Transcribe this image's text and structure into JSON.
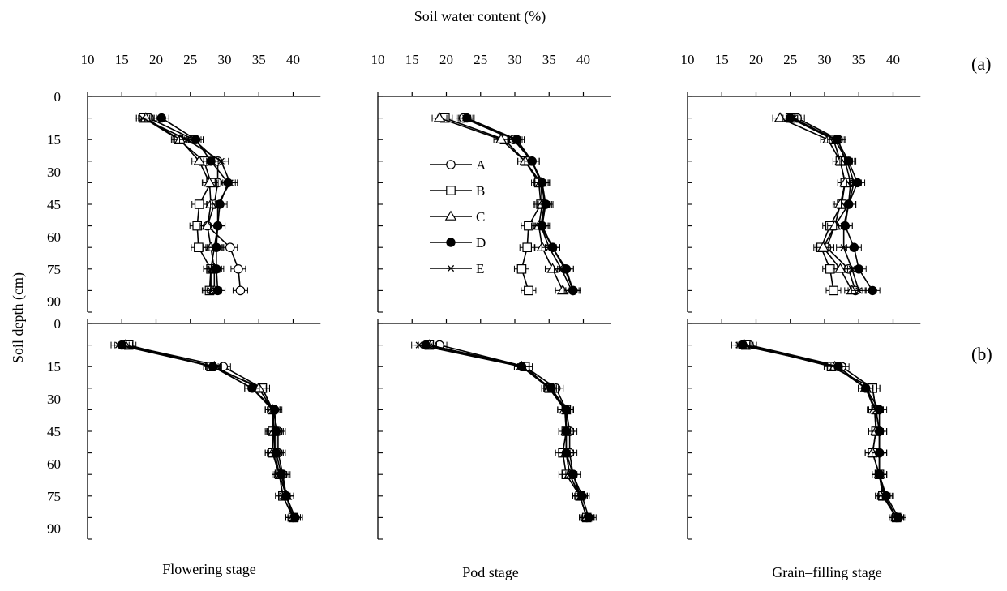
{
  "figure": {
    "x_axis_title": "Soil water content (%)",
    "y_axis_title": "Soil depth (cm)",
    "row_labels": [
      "(a)",
      "(b)"
    ],
    "column_titles": [
      "Flowering stage",
      "Pod stage",
      "Grain–filling stage"
    ],
    "x_tick_labels": [
      "10",
      "15",
      "20",
      "25",
      "30",
      "35",
      "40"
    ],
    "y_tick_labels": [
      "0",
      "15",
      "30",
      "45",
      "60",
      "75",
      "90"
    ],
    "legend": [
      "A",
      "B",
      "C",
      "D",
      "E"
    ],
    "marker_styles": {
      "A": "open-circle",
      "B": "open-square",
      "C": "open-triangle",
      "D": "filled-circle",
      "E": "asterisk"
    },
    "line_color": "#000000"
  },
  "chart_data": [
    {
      "type": "line",
      "row": "a",
      "stage": "Flowering stage",
      "xlim": [
        10,
        44
      ],
      "ylim": [
        0,
        100
      ],
      "y": [
        10,
        20,
        30,
        40,
        50,
        60,
        70,
        80,
        90
      ],
      "series": [
        {
          "name": "A",
          "x": [
            19.0,
            25.5,
            29.0,
            29.0,
            28.5,
            27.5,
            30.8,
            32.0,
            32.3
          ]
        },
        {
          "name": "B",
          "x": [
            18.2,
            23.3,
            27.0,
            28.0,
            26.3,
            26.0,
            26.2,
            28.0,
            27.8
          ]
        },
        {
          "name": "C",
          "x": [
            18.5,
            23.5,
            26.3,
            27.8,
            28.0,
            27.5,
            28.0,
            28.5,
            28.5
          ]
        },
        {
          "name": "D",
          "x": [
            20.8,
            25.8,
            28.0,
            30.5,
            29.3,
            29.0,
            28.8,
            28.8,
            29.0
          ]
        },
        {
          "name": "E",
          "x": [
            18.0,
            24.5,
            29.5,
            30.8,
            29.0,
            29.0,
            28.5,
            28.0,
            28.0
          ]
        }
      ]
    },
    {
      "type": "line",
      "row": "a",
      "stage": "Pod stage",
      "xlim": [
        10,
        44
      ],
      "ylim": [
        0,
        100
      ],
      "y": [
        10,
        20,
        30,
        40,
        50,
        60,
        70,
        80,
        90
      ],
      "series": [
        {
          "name": "A",
          "x": [
            22.5,
            29.8,
            32.5,
            33.8,
            34.5,
            33.8,
            35.5,
            37.3,
            38.5
          ]
        },
        {
          "name": "B",
          "x": [
            19.8,
            28.5,
            31.5,
            33.5,
            33.8,
            32.0,
            31.8,
            31.0,
            32.0
          ]
        },
        {
          "name": "C",
          "x": [
            19.0,
            28.0,
            31.5,
            33.8,
            34.0,
            33.5,
            34.0,
            35.5,
            37.0
          ]
        },
        {
          "name": "D",
          "x": [
            23.0,
            30.3,
            32.5,
            34.0,
            34.5,
            34.0,
            35.5,
            37.5,
            38.5
          ]
        },
        {
          "name": "E",
          "x": [
            22.8,
            30.0,
            32.5,
            34.0,
            34.3,
            33.8,
            35.0,
            36.8,
            38.3
          ]
        }
      ]
    },
    {
      "type": "line",
      "row": "a",
      "stage": "Grain–filling stage",
      "xlim": [
        10,
        44
      ],
      "ylim": [
        0,
        100
      ],
      "y": [
        10,
        20,
        30,
        40,
        50,
        60,
        70,
        80,
        90
      ],
      "series": [
        {
          "name": "A",
          "x": [
            26.0,
            32.0,
            33.0,
            33.8,
            33.5,
            31.5,
            30.3,
            33.5,
            34.5
          ]
        },
        {
          "name": "B",
          "x": [
            25.0,
            31.3,
            32.3,
            33.0,
            32.5,
            30.8,
            29.5,
            30.8,
            31.3
          ]
        },
        {
          "name": "C",
          "x": [
            23.5,
            30.5,
            32.3,
            33.0,
            32.3,
            31.5,
            29.8,
            32.3,
            34.0
          ]
        },
        {
          "name": "D",
          "x": [
            25.0,
            31.8,
            33.5,
            34.8,
            33.5,
            33.0,
            34.3,
            35.0,
            37.0
          ]
        },
        {
          "name": "E",
          "x": [
            25.5,
            31.5,
            33.3,
            34.3,
            33.5,
            32.8,
            32.8,
            34.0,
            35.0
          ]
        }
      ]
    },
    {
      "type": "line",
      "row": "b",
      "stage": "Flowering stage",
      "xlim": [
        10,
        44
      ],
      "ylim": [
        0,
        100
      ],
      "y": [
        10,
        20,
        30,
        40,
        50,
        60,
        70,
        80,
        90
      ],
      "series": [
        {
          "name": "A",
          "x": [
            15.5,
            29.8,
            35.5,
            37.0,
            37.8,
            37.8,
            38.5,
            39.0,
            40.0
          ]
        },
        {
          "name": "B",
          "x": [
            16.0,
            28.0,
            35.5,
            37.0,
            37.0,
            37.0,
            38.0,
            38.5,
            40.0
          ]
        },
        {
          "name": "C",
          "x": [
            15.5,
            28.5,
            35.0,
            37.0,
            37.2,
            37.0,
            38.0,
            39.0,
            40.0
          ]
        },
        {
          "name": "D",
          "x": [
            15.0,
            28.3,
            34.0,
            37.3,
            37.5,
            37.5,
            38.3,
            39.0,
            40.3
          ]
        },
        {
          "name": "E",
          "x": [
            14.5,
            28.3,
            34.0,
            37.0,
            37.3,
            37.3,
            38.0,
            38.5,
            40.0
          ]
        }
      ]
    },
    {
      "type": "line",
      "row": "b",
      "stage": "Pod stage",
      "xlim": [
        10,
        44
      ],
      "ylim": [
        0,
        100
      ],
      "y": [
        10,
        20,
        30,
        40,
        50,
        60,
        70,
        80,
        90
      ],
      "series": [
        {
          "name": "A",
          "x": [
            19.0,
            31.5,
            36.0,
            37.5,
            38.0,
            38.0,
            38.5,
            39.5,
            40.5
          ]
        },
        {
          "name": "B",
          "x": [
            17.5,
            31.5,
            35.0,
            37.5,
            37.5,
            37.0,
            37.5,
            39.5,
            40.5
          ]
        },
        {
          "name": "C",
          "x": [
            17.5,
            31.0,
            35.0,
            37.3,
            37.5,
            37.5,
            38.0,
            39.5,
            40.5
          ]
        },
        {
          "name": "D",
          "x": [
            17.0,
            31.0,
            35.3,
            37.5,
            37.5,
            37.5,
            38.5,
            39.8,
            40.8
          ]
        },
        {
          "name": "E",
          "x": [
            16.0,
            31.0,
            35.3,
            37.5,
            37.5,
            37.5,
            38.0,
            39.5,
            40.5
          ]
        }
      ]
    },
    {
      "type": "line",
      "row": "b",
      "stage": "Grain–filling stage",
      "xlim": [
        10,
        44
      ],
      "ylim": [
        0,
        100
      ],
      "y": [
        10,
        20,
        30,
        40,
        50,
        60,
        70,
        80,
        90
      ],
      "series": [
        {
          "name": "A",
          "x": [
            19.0,
            32.5,
            37.0,
            37.5,
            38.0,
            38.0,
            38.0,
            38.5,
            40.5
          ]
        },
        {
          "name": "B",
          "x": [
            18.5,
            31.0,
            37.0,
            37.5,
            37.5,
            37.0,
            38.0,
            38.5,
            40.5
          ]
        },
        {
          "name": "C",
          "x": [
            18.3,
            31.5,
            36.0,
            37.3,
            37.5,
            37.0,
            38.0,
            38.5,
            40.5
          ]
        },
        {
          "name": "D",
          "x": [
            18.0,
            32.0,
            36.0,
            38.0,
            38.0,
            38.0,
            38.0,
            39.0,
            40.8
          ]
        },
        {
          "name": "E",
          "x": [
            17.5,
            32.0,
            36.0,
            37.5,
            38.0,
            38.0,
            38.0,
            38.8,
            40.5
          ]
        }
      ]
    }
  ]
}
